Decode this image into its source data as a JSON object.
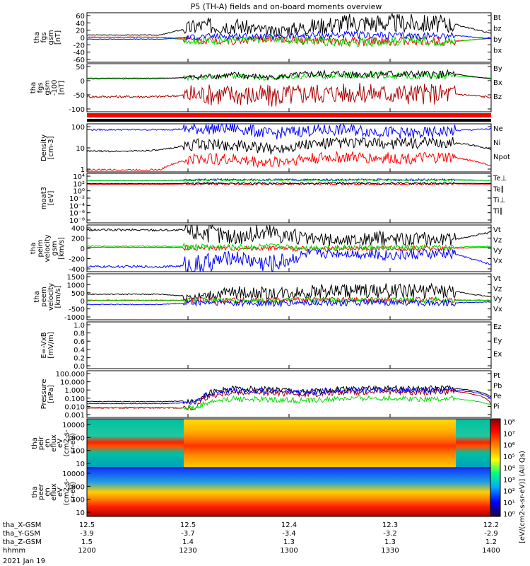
{
  "chart_data": {
    "type": "line",
    "title": "P5 (TH-A) fields and on-board moments overview",
    "date_label": "2021 Jan 19",
    "x_axis": {
      "rows": [
        {
          "name": "tha_X-GSM",
          "values": [
            "12.5",
            "12.5",
            "12.4",
            "12.3",
            "12.2"
          ]
        },
        {
          "name": "tha_Y-GSM",
          "values": [
            "-3.9",
            "-3.7",
            "-3.4",
            "-3.2",
            "-2.9"
          ]
        },
        {
          "name": "tha_Z-GSM",
          "values": [
            "1.5",
            "1.4",
            "1.3",
            "1.3",
            "1.2"
          ]
        },
        {
          "name": "hhmm",
          "values": [
            "1200",
            "1230",
            "1300",
            "1330",
            "1400"
          ]
        }
      ],
      "range": [
        1200,
        1400
      ]
    },
    "panels": [
      {
        "ylabel": [
          "tha",
          "fgs",
          "gsm",
          "[nT]"
        ],
        "ticks": [
          "60",
          "40",
          "20",
          "0",
          "-20",
          "-40",
          "-60"
        ],
        "ylim": [
          -60,
          60
        ],
        "series": [
          {
            "name": "Bt",
            "color": "#000000",
            "values": [
              6,
              6,
              6,
              28,
              30,
              14,
              26,
              35,
              36,
              34,
              32,
              10
            ]
          },
          {
            "name": "bz",
            "color": "#ff0000",
            "values": [
              1,
              1,
              1,
              -6,
              -8,
              -3,
              -8,
              -10,
              -10,
              -9,
              -9,
              -2
            ]
          },
          {
            "name": "by",
            "color": "#00dd00",
            "values": [
              0,
              0,
              0,
              -8,
              -6,
              -4,
              -8,
              -12,
              -10,
              -8,
              -10,
              -1
            ]
          },
          {
            "name": "bx",
            "color": "#0000ff",
            "values": [
              -4,
              -4,
              -4,
              2,
              4,
              1,
              5,
              6,
              5,
              4,
              5,
              -3
            ]
          }
        ]
      },
      {
        "ylabel": [
          "tha",
          "fgs",
          "gsm",
          "-100",
          "[nT]"
        ],
        "ticks": [
          "50",
          "0",
          "-50",
          "-100"
        ],
        "ylim": [
          -125,
          50
        ],
        "series": [
          {
            "name": "By",
            "color": "#00dd00",
            "values": [
              -2,
              -2,
              -2,
              0,
              4,
              -2,
              6,
              8,
              8,
              6,
              6,
              -2
            ]
          },
          {
            "name": "Bx",
            "color": "#000000",
            "values": [
              -5,
              -5,
              -5,
              2,
              8,
              0,
              10,
              12,
              12,
              10,
              12,
              -6
            ]
          },
          {
            "name": "Bz",
            "color": "#aa0000",
            "values": [
              -70,
              -70,
              -70,
              -62,
              -62,
              -70,
              -58,
              -56,
              -58,
              -60,
              -60,
              -72
            ]
          }
        ]
      },
      {
        "ylabel": [
          "Density",
          "[cm-3]"
        ],
        "ticks": [
          "100",
          "10",
          "1"
        ],
        "ylim": [
          0.7,
          200
        ],
        "log": true,
        "series": [
          {
            "name": "Ne",
            "color": "#ff0000",
            "values": [
              0.9,
              0.9,
              0.9,
              3.5,
              3.0,
              2.0,
              3.5,
              4.0,
              3.5,
              3.5,
              3.8,
              1.4
            ]
          },
          {
            "name": "Ni",
            "color": "#000000",
            "values": [
              8,
              8,
              9,
              18,
              16,
              10,
              18,
              22,
              20,
              20,
              22,
              10
            ]
          },
          {
            "name": "Npot",
            "color": "#0000ff",
            "values": [
              100,
              100,
              100,
              110,
              120,
              60,
              90,
              100,
              80,
              60,
              90,
              110
            ]
          }
        ]
      },
      {
        "ylabel": [
          "moat3",
          "[eV]"
        ],
        "ticks": [
          "10⁴",
          "10²",
          "10⁰",
          "10⁻²",
          "10⁻⁴",
          "10⁻⁶",
          "10⁻⁸"
        ],
        "ylim": [
          1e-09,
          100000.0
        ],
        "log": true,
        "series": [
          {
            "name": "Te⊥",
            "color": "#ff0000",
            "values": [
              80,
              80,
              80,
              100,
              100,
              100,
              100,
              100,
              100,
              100,
              100,
              90
            ]
          },
          {
            "name": "Te∥",
            "color": "#000000",
            "values": [
              120,
              120,
              120,
              150,
              150,
              150,
              150,
              150,
              150,
              150,
              150,
              130
            ]
          },
          {
            "name": "Ti⊥",
            "color": "#0000ff",
            "values": [
              900,
              900,
              900,
              1500,
              1500,
              1500,
              1500,
              1500,
              1500,
              1500,
              1500,
              1000
            ]
          },
          {
            "name": "Ti∥",
            "color": "#00dd00",
            "values": [
              800,
              800,
              800,
              1200,
              1200,
              1200,
              1200,
              1200,
              1200,
              1200,
              1200,
              900
            ]
          }
        ]
      },
      {
        "ylabel": [
          "tha",
          "peim",
          "velocity",
          "gsm",
          "[km/s]"
        ],
        "ticks": [
          "400",
          "200",
          "0",
          "-200",
          "-400"
        ],
        "ylim": [
          -420,
          420
        ],
        "series": [
          {
            "name": "Vt",
            "color": "#000000",
            "values": [
              330,
              330,
              330,
              320,
              200,
              300,
              160,
              140,
              180,
              170,
              160,
              290
            ]
          },
          {
            "name": "Vz",
            "color": "#ff0000",
            "values": [
              20,
              20,
              20,
              10,
              0,
              10,
              -20,
              -10,
              0,
              -10,
              0,
              20
            ]
          },
          {
            "name": "Vy",
            "color": "#00dd00",
            "values": [
              40,
              40,
              40,
              30,
              20,
              30,
              10,
              20,
              10,
              10,
              20,
              40
            ]
          },
          {
            "name": "Vx",
            "color": "#0000ff",
            "values": [
              -330,
              -330,
              -330,
              -310,
              -150,
              -290,
              -100,
              -80,
              -120,
              -110,
              -100,
              -290
            ]
          }
        ]
      },
      {
        "ylabel": [
          "tha",
          "peem",
          "velocity",
          "[km/s]"
        ],
        "ticks": [
          "1500",
          "1000",
          "500",
          "0",
          "-500",
          "-1000"
        ],
        "ylim": [
          -1100,
          1600
        ],
        "series": [
          {
            "name": "Vt",
            "color": "#000000",
            "values": [
              400,
              400,
              400,
              250,
              500,
              450,
              550,
              600,
              600,
              600,
              550,
              250
            ]
          },
          {
            "name": "Vz",
            "color": "#ff0000",
            "values": [
              50,
              50,
              50,
              50,
              60,
              50,
              60,
              60,
              60,
              60,
              60,
              50
            ]
          },
          {
            "name": "Vy",
            "color": "#00dd00",
            "values": [
              30,
              30,
              30,
              40,
              40,
              30,
              40,
              40,
              40,
              40,
              40,
              30
            ]
          },
          {
            "name": "Vx",
            "color": "#0000ff",
            "values": [
              -200,
              -200,
              -200,
              -100,
              -100,
              -150,
              -100,
              -100,
              -100,
              -100,
              -100,
              -50
            ]
          }
        ]
      },
      {
        "ylabel": [
          "E=-VxB",
          "[mV/m]"
        ],
        "ticks": [
          "1.0",
          "0.8",
          "0.6",
          "0.4",
          "0.2",
          "0.0"
        ],
        "ylim": [
          0,
          1
        ],
        "series": [
          {
            "name": "Ez",
            "color": "#ff0000",
            "values": []
          },
          {
            "name": "Ey",
            "color": "#00dd00",
            "values": []
          },
          {
            "name": "Ex",
            "color": "#0000ff",
            "values": []
          }
        ]
      },
      {
        "ylabel": [
          "Pressure",
          "[nPa]"
        ],
        "ticks": [
          "100.000",
          "10.000",
          "1.000",
          "0.100",
          "0.010",
          "0.001"
        ],
        "ylim": [
          0.001,
          100
        ],
        "log": true,
        "series": [
          {
            "name": "Pt",
            "color": "#000000",
            "values": [
              0.05,
              0.05,
              0.05,
              0.06,
              1.2,
              1.0,
              0.5,
              1.2,
              1.3,
              1.2,
              1.3,
              0.15
            ]
          },
          {
            "name": "Pb",
            "color": "#aa0000",
            "values": [
              0.01,
              0.01,
              0.01,
              0.01,
              0.5,
              0.4,
              0.3,
              0.5,
              0.6,
              0.5,
              0.6,
              0.02
            ]
          },
          {
            "name": "Pe",
            "color": "#00dd00",
            "values": [
              0.012,
              0.012,
              0.012,
              0.01,
              0.1,
              0.08,
              0.06,
              0.1,
              0.12,
              0.1,
              0.1,
              0.02
            ]
          },
          {
            "name": "Pi",
            "color": "#0000ff",
            "values": [
              0.03,
              0.03,
              0.03,
              0.04,
              0.8,
              0.7,
              0.4,
              0.9,
              0.9,
              0.8,
              0.9,
              0.1
            ]
          }
        ]
      }
    ],
    "spectrograms": [
      {
        "ylabel": [
          "tha",
          "peir",
          "en",
          "eflux",
          "eV",
          "(cm2-s-",
          "sr-eV)"
        ],
        "ticks": [
          "10000",
          "1000",
          "100",
          "10"
        ]
      },
      {
        "ylabel": [
          "tha",
          "peer",
          "en",
          "eflux",
          "eV",
          "(cm2-s-",
          "sr-eV)"
        ],
        "ticks": [
          "10000",
          "1000",
          "100",
          "10"
        ]
      }
    ],
    "colorbar": {
      "label": "[eV/(cm2-s-sr-eV)] (All Qs)",
      "ticks": [
        "10⁸",
        "10⁷",
        "10⁶",
        "10⁵",
        "10⁴",
        "10³",
        "10²",
        "10¹",
        "10⁰"
      ]
    }
  }
}
